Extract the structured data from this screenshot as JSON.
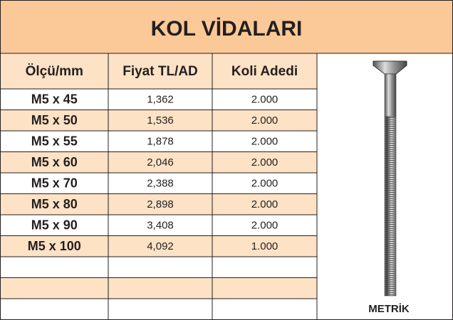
{
  "title": "KOL VİDALARI",
  "table": {
    "headers": [
      "Ölçü/mm",
      "Fiyat TL/AD",
      "Koli Adedi"
    ],
    "rows": [
      [
        "M5 x 45",
        "1,362",
        "2.000"
      ],
      [
        "M5 x 50",
        "1,536",
        "2.000"
      ],
      [
        "M5 x 55",
        "1,878",
        "2.000"
      ],
      [
        "M5 x 60",
        "2,046",
        "2.000"
      ],
      [
        "M5 x 70",
        "2,388",
        "2.000"
      ],
      [
        "M5 x 80",
        "2,898",
        "2.000"
      ],
      [
        "M5 x 90",
        "3,408",
        "2.000"
      ],
      [
        "M5 x 100",
        "4,092",
        "1.000"
      ]
    ]
  },
  "image_caption": "METRİK"
}
